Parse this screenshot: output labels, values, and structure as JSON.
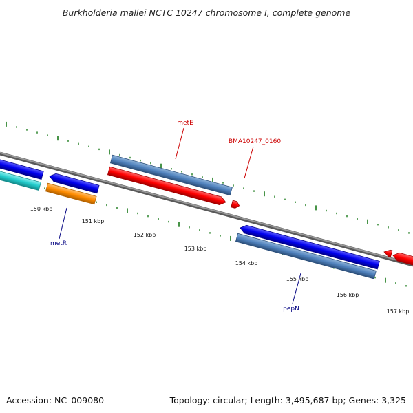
{
  "title": "Burkholderia mallei NCTC 10247 chromosome I, complete genome",
  "footer": {
    "accession": "Accession: NC_009080",
    "topology": "Topology: circular; Length: 3,495,687 bp; Genes: 3,325"
  },
  "ruler": {
    "tick_labels": [
      "150 kbp",
      "151 kbp",
      "152 kbp",
      "153 kbp",
      "154 kbp",
      "155 kbp",
      "156 kbp",
      "157 kbp"
    ]
  },
  "genes": [
    {
      "name": "metE",
      "color": "#cc0000"
    },
    {
      "name": "BMA10247_0160",
      "color": "#cc0000"
    },
    {
      "name": "metR",
      "color": "#000080"
    },
    {
      "name": "pepN",
      "color": "#000080"
    }
  ],
  "colors": {
    "backbone": "#808080",
    "ticks": "#1a7a1a",
    "cds_forward": "#ff0000",
    "cds_reverse": "#0000ee",
    "gene_bar": "#4f81bd",
    "cyan_bar": "#22cccc",
    "orange_bar": "#ff8c00"
  }
}
